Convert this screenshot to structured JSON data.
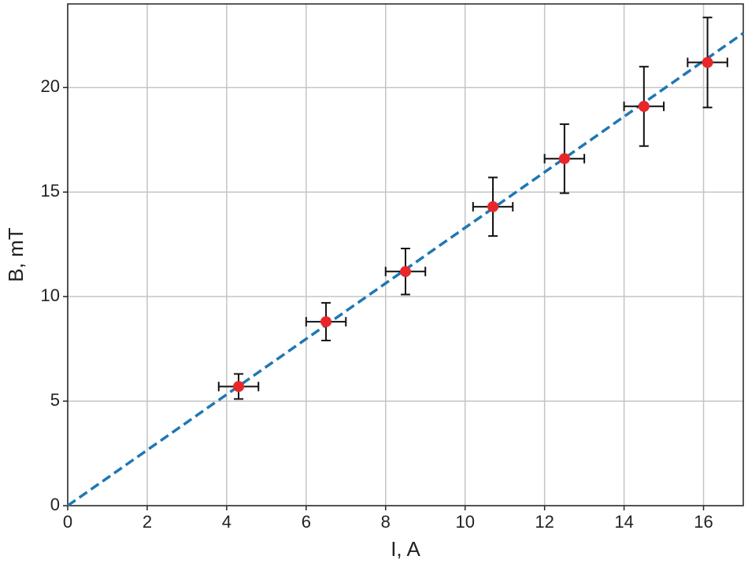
{
  "chart_data": {
    "type": "scatter",
    "xlabel": "I, A",
    "ylabel": "B, mT",
    "xlim": [
      0,
      17
    ],
    "ylim": [
      0,
      24
    ],
    "xticks": [
      0,
      2,
      4,
      6,
      8,
      10,
      12,
      14,
      16
    ],
    "yticks": [
      0,
      5,
      10,
      15,
      20
    ],
    "grid": true,
    "series": [
      {
        "type": "scatter",
        "color": "#e8262a",
        "errorbar_color": "#111111",
        "x": [
          4.3,
          6.5,
          8.5,
          10.7,
          12.5,
          14.5,
          16.1
        ],
        "values": [
          5.7,
          8.8,
          11.2,
          14.3,
          16.6,
          19.1,
          21.2
        ],
        "xerr": [
          0.5,
          0.5,
          0.5,
          0.5,
          0.5,
          0.5,
          0.5
        ],
        "yerr": [
          0.6,
          0.9,
          1.1,
          1.4,
          1.65,
          1.9,
          2.15
        ]
      },
      {
        "type": "line",
        "color": "#1f77b4",
        "dashed": true,
        "x": [
          0,
          17
        ],
        "values": [
          0,
          22.6
        ]
      }
    ]
  }
}
